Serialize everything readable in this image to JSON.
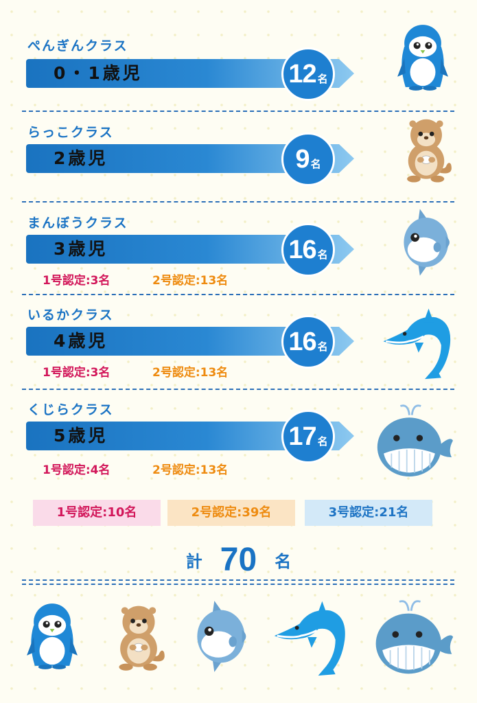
{
  "classes": [
    {
      "name": "ぺんぎんクラス",
      "age": "0・1歳児",
      "count": "12",
      "unit": "名",
      "animal": "penguin-icon",
      "cert1": "",
      "cert2": ""
    },
    {
      "name": "らっこクラス",
      "age": "2歳児",
      "count": "9",
      "unit": "名",
      "animal": "otter-icon",
      "cert1": "",
      "cert2": ""
    },
    {
      "name": "まんぼうクラス",
      "age": "3歳児",
      "count": "16",
      "unit": "名",
      "animal": "sunfish-icon",
      "cert1": "1号認定:3名",
      "cert2": "2号認定:13名"
    },
    {
      "name": "いるかクラス",
      "age": "4歳児",
      "count": "16",
      "unit": "名",
      "animal": "dolphin-icon",
      "cert1": "1号認定:3名",
      "cert2": "2号認定:13名"
    },
    {
      "name": "くじらクラス",
      "age": "5歳児",
      "count": "17",
      "unit": "名",
      "animal": "whale-icon",
      "cert1": "1号認定:4名",
      "cert2": "2号認定:13名"
    }
  ],
  "summary": {
    "cert1": "1号認定:10名",
    "cert2": "2号認定:39名",
    "cert3": "3号認定:21名"
  },
  "total": {
    "label": "計",
    "value": "70",
    "unit": "名"
  },
  "colors": {
    "primary": "#1e7fd0",
    "cert1": "#d2175a",
    "cert2": "#ee8b10",
    "cert3": "#1e74c4"
  },
  "bottom_animals": [
    "penguin-icon",
    "otter-icon",
    "sunfish-icon",
    "dolphin-icon",
    "whale-icon"
  ]
}
